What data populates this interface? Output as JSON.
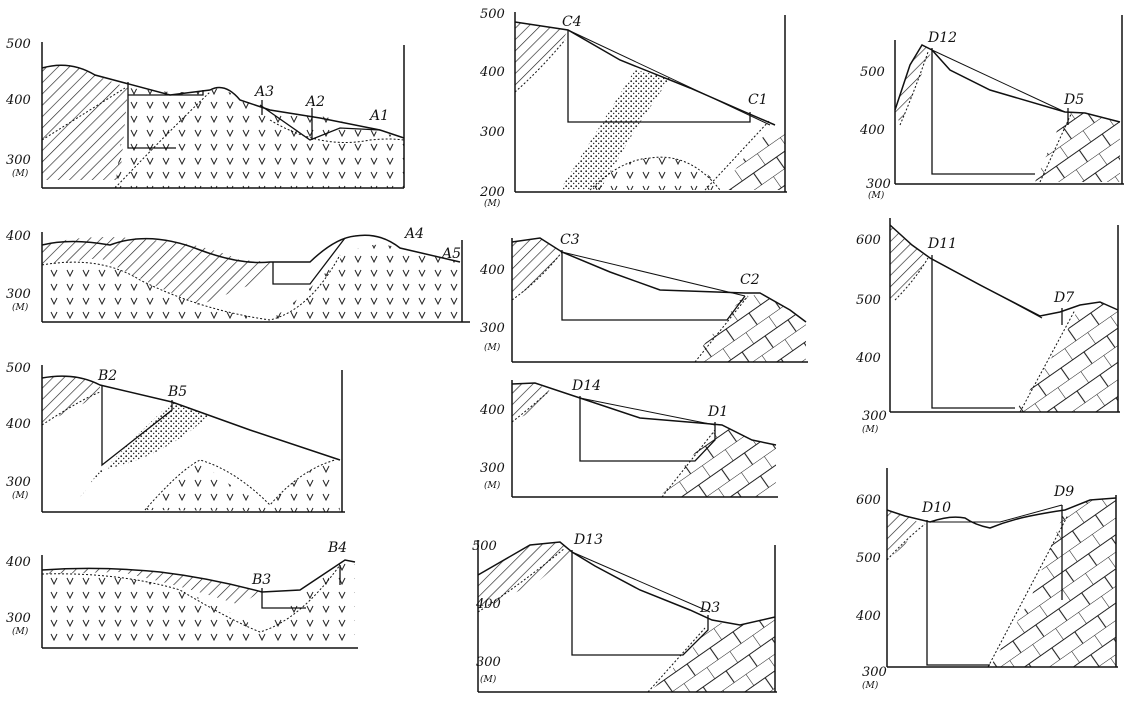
{
  "sections": [
    {
      "id": "A1-A3",
      "ticks": [
        "500",
        "400",
        "300"
      ],
      "unit": "(M)",
      "labels": [
        "A3",
        "A2",
        "A1"
      ]
    },
    {
      "id": "A4-A5",
      "ticks": [
        "400",
        "300"
      ],
      "unit": "(M)",
      "labels": [
        "A4",
        "A5"
      ]
    },
    {
      "id": "B2-B5",
      "ticks": [
        "500",
        "400",
        "300"
      ],
      "unit": "(M)",
      "labels": [
        "B2",
        "B5"
      ]
    },
    {
      "id": "B3-B4",
      "ticks": [
        "400",
        "300"
      ],
      "unit": "(M)",
      "labels": [
        "B3",
        "B4"
      ]
    },
    {
      "id": "C4-C1",
      "ticks": [
        "500",
        "400",
        "300",
        "200"
      ],
      "unit": "(M)",
      "labels": [
        "C4",
        "C1"
      ]
    },
    {
      "id": "C3-C2",
      "ticks": [
        "400",
        "300"
      ],
      "unit": "(M)",
      "labels": [
        "C3",
        "C2"
      ]
    },
    {
      "id": "D14-D1",
      "ticks": [
        "400",
        "300"
      ],
      "unit": "(M)",
      "labels": [
        "D14",
        "D1"
      ]
    },
    {
      "id": "D13-D3",
      "ticks": [
        "500",
        "400",
        "300"
      ],
      "unit": "(M)",
      "labels": [
        "D13",
        "D3"
      ]
    },
    {
      "id": "D12-D5",
      "ticks": [
        "500",
        "400",
        "300"
      ],
      "unit": "(M)",
      "labels": [
        "D12",
        "D5"
      ]
    },
    {
      "id": "D11-D7",
      "ticks": [
        "600",
        "500",
        "400",
        "300"
      ],
      "unit": "(M)",
      "labels": [
        "D11",
        "D7"
      ]
    },
    {
      "id": "D10-D9",
      "ticks": [
        "600",
        "500",
        "400",
        "300"
      ],
      "unit": "(M)",
      "labels": [
        "D10",
        "D9"
      ]
    }
  ]
}
